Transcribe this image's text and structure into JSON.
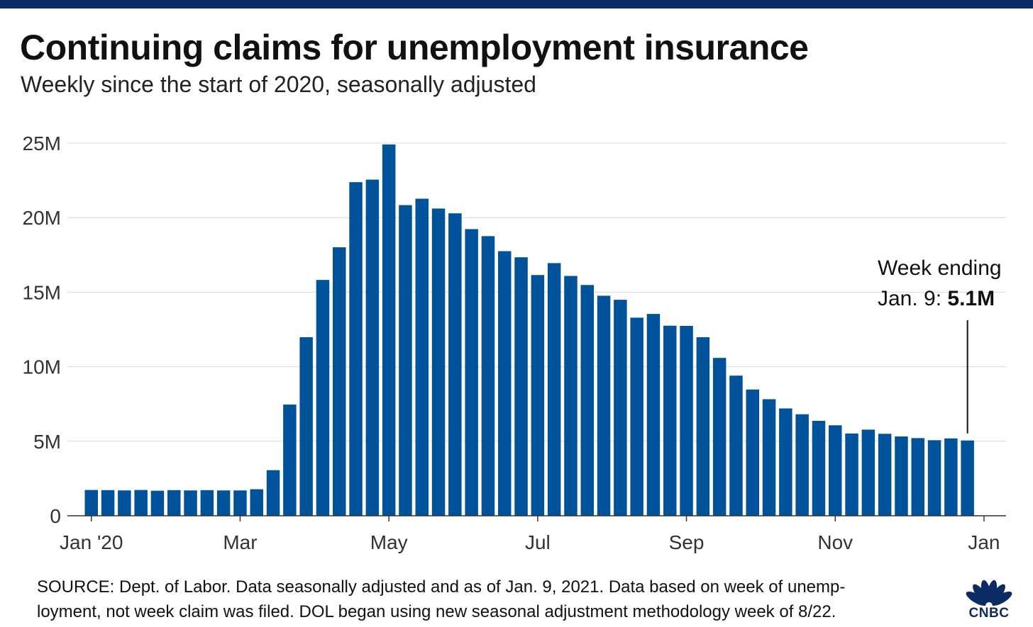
{
  "title": "Continuing claims for unemployment insurance",
  "subtitle": "Weekly since the start of 2020, seasonally adjusted",
  "footer": {
    "line1": "SOURCE: Dept. of Labor. Data seasonally adjusted and as of Jan. 9, 2021. Data based on week of unemp-",
    "line2": "loyment, not week claim was filed. DOL began using new seasonal adjustment methodology week of 8/22."
  },
  "logo": {
    "text": "CNBC",
    "colors": [
      "#f2a900",
      "#e35205",
      "#c8102e",
      "#6c2c91",
      "#0077c8",
      "#00a651"
    ]
  },
  "colors": {
    "bar": "#00539b",
    "grid": "#d9d9d9",
    "axis": "#333333",
    "top_bar": "#0b2b63"
  },
  "chart_data": {
    "type": "bar",
    "ylim": [
      0,
      25
    ],
    "yunit": "M",
    "yticks": [
      {
        "value": 0,
        "label": "0"
      },
      {
        "value": 5,
        "label": "5M"
      },
      {
        "value": 10,
        "label": "10M"
      },
      {
        "value": 15,
        "label": "15M"
      },
      {
        "value": 20,
        "label": "20M"
      },
      {
        "value": 25,
        "label": "25M"
      }
    ],
    "xticks": [
      {
        "index": 0,
        "label": "Jan '20"
      },
      {
        "index": 9,
        "label": "Mar"
      },
      {
        "index": 18,
        "label": "May"
      },
      {
        "index": 27,
        "label": "Jul"
      },
      {
        "index": 36,
        "label": "Sep"
      },
      {
        "index": 45,
        "label": "Nov"
      },
      {
        "index": 54,
        "label": "Jan"
      }
    ],
    "values": [
      1.73,
      1.72,
      1.7,
      1.73,
      1.68,
      1.72,
      1.7,
      1.72,
      1.7,
      1.7,
      1.78,
      3.06,
      7.46,
      11.98,
      15.82,
      18.01,
      22.38,
      22.55,
      24.91,
      20.84,
      21.27,
      20.61,
      20.29,
      19.23,
      18.76,
      17.75,
      17.34,
      16.15,
      16.95,
      16.09,
      15.48,
      14.76,
      14.49,
      13.29,
      13.54,
      12.75,
      12.74,
      11.98,
      10.59,
      9.4,
      8.47,
      7.82,
      7.2,
      6.81,
      6.37,
      6.07,
      5.52,
      5.78,
      5.5,
      5.32,
      5.21,
      5.07,
      5.19,
      5.05
    ],
    "annotation": {
      "index": 53,
      "line1": "Week ending",
      "line2_prefix": "Jan. 9: ",
      "line2_value": "5.1M"
    }
  }
}
